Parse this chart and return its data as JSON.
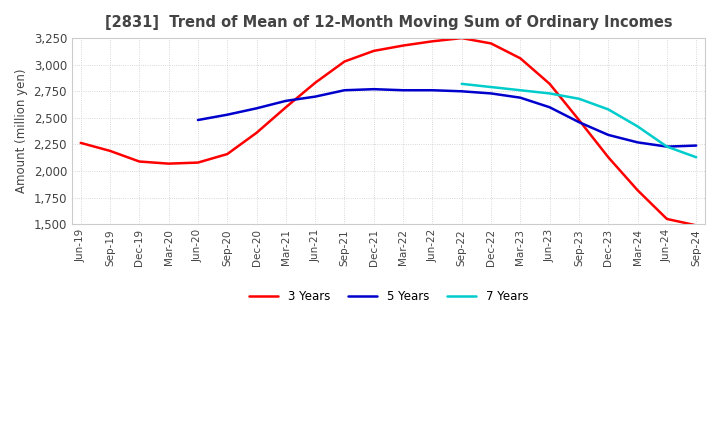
{
  "title": "[2831]  Trend of Mean of 12-Month Moving Sum of Ordinary Incomes",
  "ylabel": "Amount (million yen)",
  "ylim": [
    1500,
    3250
  ],
  "yticks": [
    1500,
    1750,
    2000,
    2250,
    2500,
    2750,
    3000,
    3250
  ],
  "bg_color": "#ffffff",
  "plot_bg_color": "#ffffff",
  "grid_color": "#cccccc",
  "line_colors": {
    "3y": "#ff0000",
    "5y": "#0000cc",
    "7y": "#00cccc",
    "10y": "#007700"
  },
  "line_width": 1.8,
  "x_labels": [
    "Jun-19",
    "Sep-19",
    "Dec-19",
    "Mar-20",
    "Jun-20",
    "Sep-20",
    "Dec-20",
    "Mar-21",
    "Jun-21",
    "Sep-21",
    "Dec-21",
    "Mar-22",
    "Jun-22",
    "Sep-22",
    "Dec-22",
    "Mar-23",
    "Jun-23",
    "Sep-23",
    "Dec-23",
    "Mar-24",
    "Jun-24",
    "Sep-24"
  ],
  "series_3y": [
    2265,
    2190,
    2090,
    2070,
    2080,
    2160,
    2360,
    2600,
    2830,
    3030,
    3130,
    3180,
    3220,
    3250,
    3200,
    3060,
    2820,
    2480,
    2130,
    1820,
    1550,
    1490
  ],
  "series_5y": [
    null,
    null,
    null,
    null,
    2480,
    2530,
    2590,
    2660,
    2700,
    2760,
    2770,
    2760,
    2760,
    2750,
    2730,
    2690,
    2600,
    2460,
    2340,
    2270,
    2230,
    2240
  ],
  "series_7y": [
    null,
    null,
    null,
    null,
    null,
    null,
    null,
    null,
    null,
    null,
    null,
    null,
    null,
    2820,
    2790,
    2760,
    2730,
    2680,
    2580,
    2420,
    2230,
    2130
  ],
  "series_10y": [
    null,
    null,
    null,
    null,
    null,
    null,
    null,
    null,
    null,
    null,
    null,
    null,
    null,
    null,
    null,
    null,
    null,
    null,
    null,
    null,
    null,
    null
  ]
}
